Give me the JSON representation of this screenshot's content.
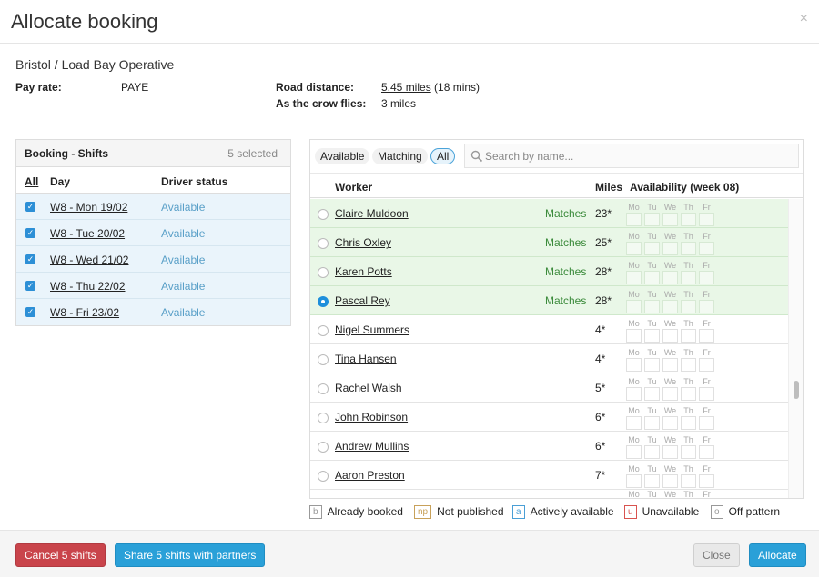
{
  "modal": {
    "title": "Allocate booking",
    "close": "×"
  },
  "subtitle": "Bristol / Load Bay Operative",
  "info": {
    "pay_rate_label": "Pay rate:",
    "pay_rate_value": "PAYE",
    "road_label": "Road distance:",
    "road_link": "5.45 miles",
    "road_time": "(18 mins)",
    "crow_label": "As the crow flies:",
    "crow_value": "3 miles"
  },
  "shifts": {
    "title": "Booking - Shifts",
    "count": "5 selected",
    "col_all": "All",
    "col_day": "Day",
    "col_status": "Driver status",
    "rows": [
      {
        "day": "W8 - Mon 19/02",
        "status": "Available"
      },
      {
        "day": "W8 - Tue 20/02",
        "status": "Available"
      },
      {
        "day": "W8 - Wed 21/02",
        "status": "Available"
      },
      {
        "day": "W8 - Thu 22/02",
        "status": "Available"
      },
      {
        "day": "W8 - Fri 23/02",
        "status": "Available"
      }
    ]
  },
  "filters": {
    "available": "Available",
    "matching": "Matching",
    "all": "All",
    "active": "All"
  },
  "search": {
    "placeholder": "Search by name..."
  },
  "workers_cols": {
    "worker": "Worker",
    "miles": "Miles",
    "availability": "Availability (week 08)"
  },
  "day_abbr": [
    "Mo",
    "Tu",
    "We",
    "Th",
    "Fr"
  ],
  "workers": [
    {
      "name": "Claire Muldoon",
      "match": "Matches",
      "miles": "23*",
      "selected": false
    },
    {
      "name": "Chris Oxley",
      "match": "Matches",
      "miles": "25*",
      "selected": false
    },
    {
      "name": "Karen Potts",
      "match": "Matches",
      "miles": "28*",
      "selected": false
    },
    {
      "name": "Pascal Rey",
      "match": "Matches",
      "miles": "28*",
      "selected": true
    },
    {
      "name": "Nigel Summers",
      "match": "",
      "miles": "4*",
      "selected": false
    },
    {
      "name": "Tina Hansen",
      "match": "",
      "miles": "4*",
      "selected": false
    },
    {
      "name": "Rachel Walsh",
      "match": "",
      "miles": "5*",
      "selected": false
    },
    {
      "name": "John Robinson",
      "match": "",
      "miles": "6*",
      "selected": false
    },
    {
      "name": "Andrew Mullins",
      "match": "",
      "miles": "6*",
      "selected": false
    },
    {
      "name": "Aaron Preston",
      "match": "",
      "miles": "7*",
      "selected": false
    }
  ],
  "legend": [
    {
      "key": "b",
      "label": "Already booked",
      "color": "#999999"
    },
    {
      "key": "np",
      "label": "Not published",
      "color": "#c8a15a"
    },
    {
      "key": "a",
      "label": "Actively available",
      "color": "#4a9fd6"
    },
    {
      "key": "u",
      "label": "Unavailable",
      "color": "#d9534f"
    },
    {
      "key": "o",
      "label": "Off pattern",
      "color": "#999999"
    }
  ],
  "footer": {
    "cancel": "Cancel 5 shifts",
    "share": "Share 5 shifts with partners",
    "close": "Close",
    "allocate": "Allocate"
  }
}
